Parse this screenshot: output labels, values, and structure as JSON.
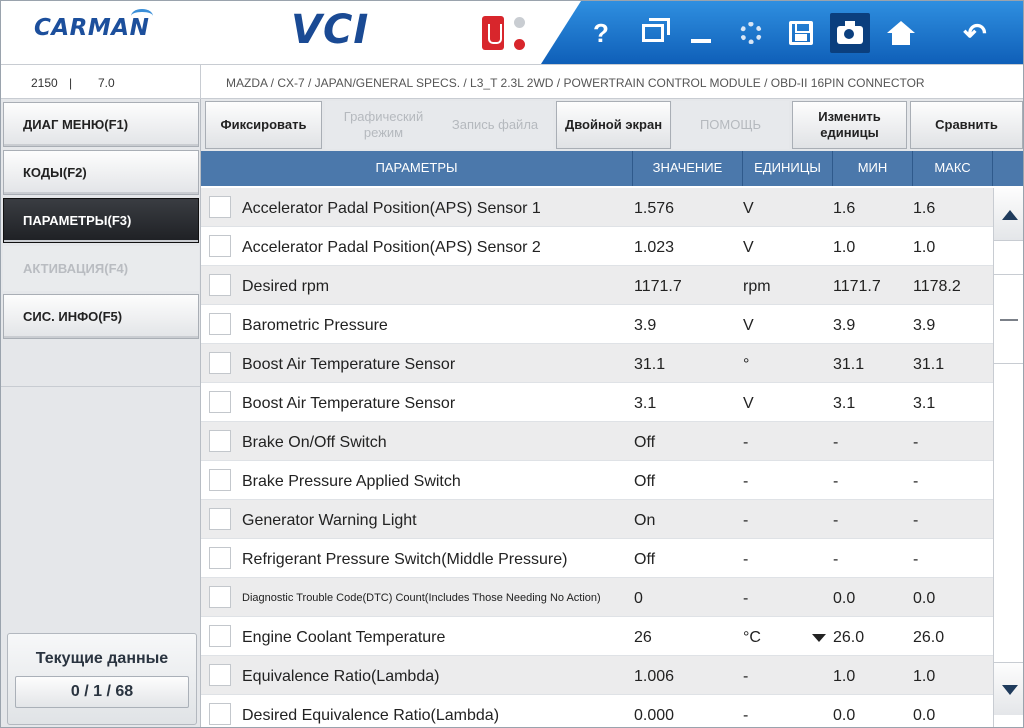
{
  "header": {
    "logo": "CARMAN",
    "product": "VCI",
    "help_label": "?",
    "back_label": "↶",
    "colors": {
      "brand_blue": "#1c4f9c",
      "toolbar_blue": "#1f74cc",
      "status_red": "#d8262c",
      "header_row": "#4b78ab"
    }
  },
  "info": {
    "code": "2150",
    "separator": "|",
    "version": "7.0",
    "breadcrumb": "MAZDA / CX-7 / JAPAN/GENERAL SPECS. / L3_T 2.3L 2WD / POWERTRAIN CONTROL MODULE / OBD-II 16PIN CONNECTOR"
  },
  "sidebar": {
    "items": [
      {
        "label": "ДИАГ МЕНЮ(F1)"
      },
      {
        "label": "КОДЫ(F2)"
      },
      {
        "label": "ПАРАМЕТРЫ(F3)"
      },
      {
        "label": "АКТИВАЦИЯ(F4)"
      },
      {
        "label": "СИС. ИНФО(F5)"
      }
    ],
    "panel_title": "Текущие данные",
    "panel_counter": "0 / 1 / 68"
  },
  "functions": {
    "fix": "Фиксировать",
    "graph": "Графический режим",
    "file": "Запись файла",
    "dual": "Двойной экран",
    "help": "ПОМОЩЬ",
    "units": "Изменить единицы",
    "compare": "Сравнить"
  },
  "table": {
    "headers": {
      "param": "ПАРАМЕТРЫ",
      "value": "ЗНАЧЕНИЕ",
      "units": "ЕДИНИЦЫ",
      "min": "МИН",
      "max": "МАКС"
    },
    "rows": [
      {
        "name": "Accelerator Padal Position(APS) Sensor 1",
        "value": "1.576",
        "unit": "V",
        "min": "1.6",
        "max": "1.6"
      },
      {
        "name": "Accelerator Padal Position(APS) Sensor 2",
        "value": "1.023",
        "unit": "V",
        "min": "1.0",
        "max": "1.0"
      },
      {
        "name": "Desired rpm",
        "value": "1171.7",
        "unit": "rpm",
        "min": "1171.7",
        "max": "1178.2"
      },
      {
        "name": "Barometric Pressure",
        "value": "3.9",
        "unit": "V",
        "min": "3.9",
        "max": "3.9"
      },
      {
        "name": "Boost Air Temperature Sensor",
        "value": "31.1",
        "unit": "°",
        "min": "31.1",
        "max": "31.1"
      },
      {
        "name": "Boost Air Temperature Sensor",
        "value": "3.1",
        "unit": "V",
        "min": "3.1",
        "max": "3.1"
      },
      {
        "name": "Brake On/Off Switch",
        "value": "Off",
        "unit": "-",
        "min": "-",
        "max": "-"
      },
      {
        "name": "Brake Pressure Applied Switch",
        "value": "Off",
        "unit": "-",
        "min": "-",
        "max": "-"
      },
      {
        "name": "Generator Warning Light",
        "value": "On",
        "unit": "-",
        "min": "-",
        "max": "-"
      },
      {
        "name": "Refrigerant Pressure Switch(Middle Pressure)",
        "value": "Off",
        "unit": "-",
        "min": "-",
        "max": "-"
      },
      {
        "name": "Diagnostic Trouble Code(DTC) Count(Includes Those Needing No Action)",
        "value": "0",
        "unit": "-",
        "min": "0.0",
        "max": "0.0"
      },
      {
        "name": "Engine Coolant Temperature",
        "value": "26",
        "unit": "°C",
        "min": "26.0",
        "max": "26.0"
      },
      {
        "name": "Equivalence Ratio(Lambda)",
        "value": "1.006",
        "unit": "-",
        "min": "1.0",
        "max": "1.0"
      },
      {
        "name": "Desired Equivalence Ratio(Lambda)",
        "value": "0.000",
        "unit": "-",
        "min": "0.0",
        "max": "0.0"
      }
    ]
  }
}
